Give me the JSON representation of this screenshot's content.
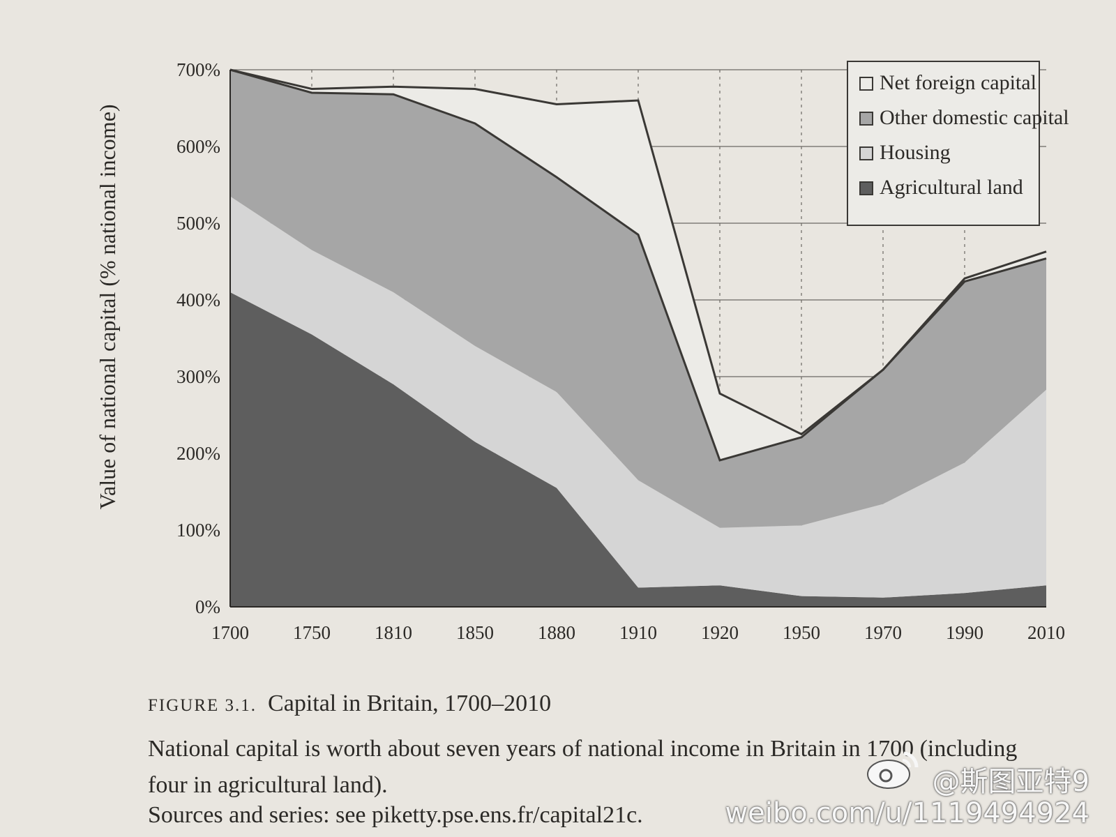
{
  "chart_data": {
    "type": "area",
    "stacked": true,
    "title": "Capital in Britain, 1700–2010",
    "figure_number": "FIGURE 3.1.",
    "ylabel": "Value of national capital (% national income)",
    "xlabel": "",
    "ylim": [
      0,
      700
    ],
    "y_ticks": [
      "0%",
      "100%",
      "200%",
      "300%",
      "400%",
      "500%",
      "600%",
      "700%"
    ],
    "categories": [
      "1700",
      "1750",
      "1810",
      "1850",
      "1880",
      "1910",
      "1920",
      "1950",
      "1970",
      "1990",
      "2010"
    ],
    "grid": "dashed vertical, solid horizontal",
    "legend_position": "top-right",
    "series": [
      {
        "name": "Agricultural land",
        "values": [
          410,
          355,
          290,
          215,
          155,
          25,
          28,
          14,
          12,
          18,
          28
        ],
        "color": "#5e5e5e"
      },
      {
        "name": "Housing",
        "values": [
          125,
          110,
          120,
          125,
          125,
          140,
          75,
          92,
          122,
          170,
          255
        ],
        "color": "#d5d5d5"
      },
      {
        "name": "Other domestic capital",
        "values": [
          165,
          205,
          258,
          290,
          280,
          320,
          88,
          115,
          175,
          240,
          180
        ],
        "color": "#a6a6a6"
      },
      {
        "name": "Net foreign capital",
        "values": [
          0,
          5,
          10,
          45,
          95,
          175,
          87,
          4,
          0,
          -4,
          -9
        ],
        "color": "#ecebe7"
      }
    ]
  },
  "caption": {
    "description": "National capital is worth about seven years of national income in Britain in 1700 (including four in agricultural land).",
    "sources": "Sources and series: see piketty.pse.ens.fr/capital21c."
  },
  "watermark": {
    "handle": "@斯图亚特9",
    "url": "weibo.com/u/1119494924"
  }
}
